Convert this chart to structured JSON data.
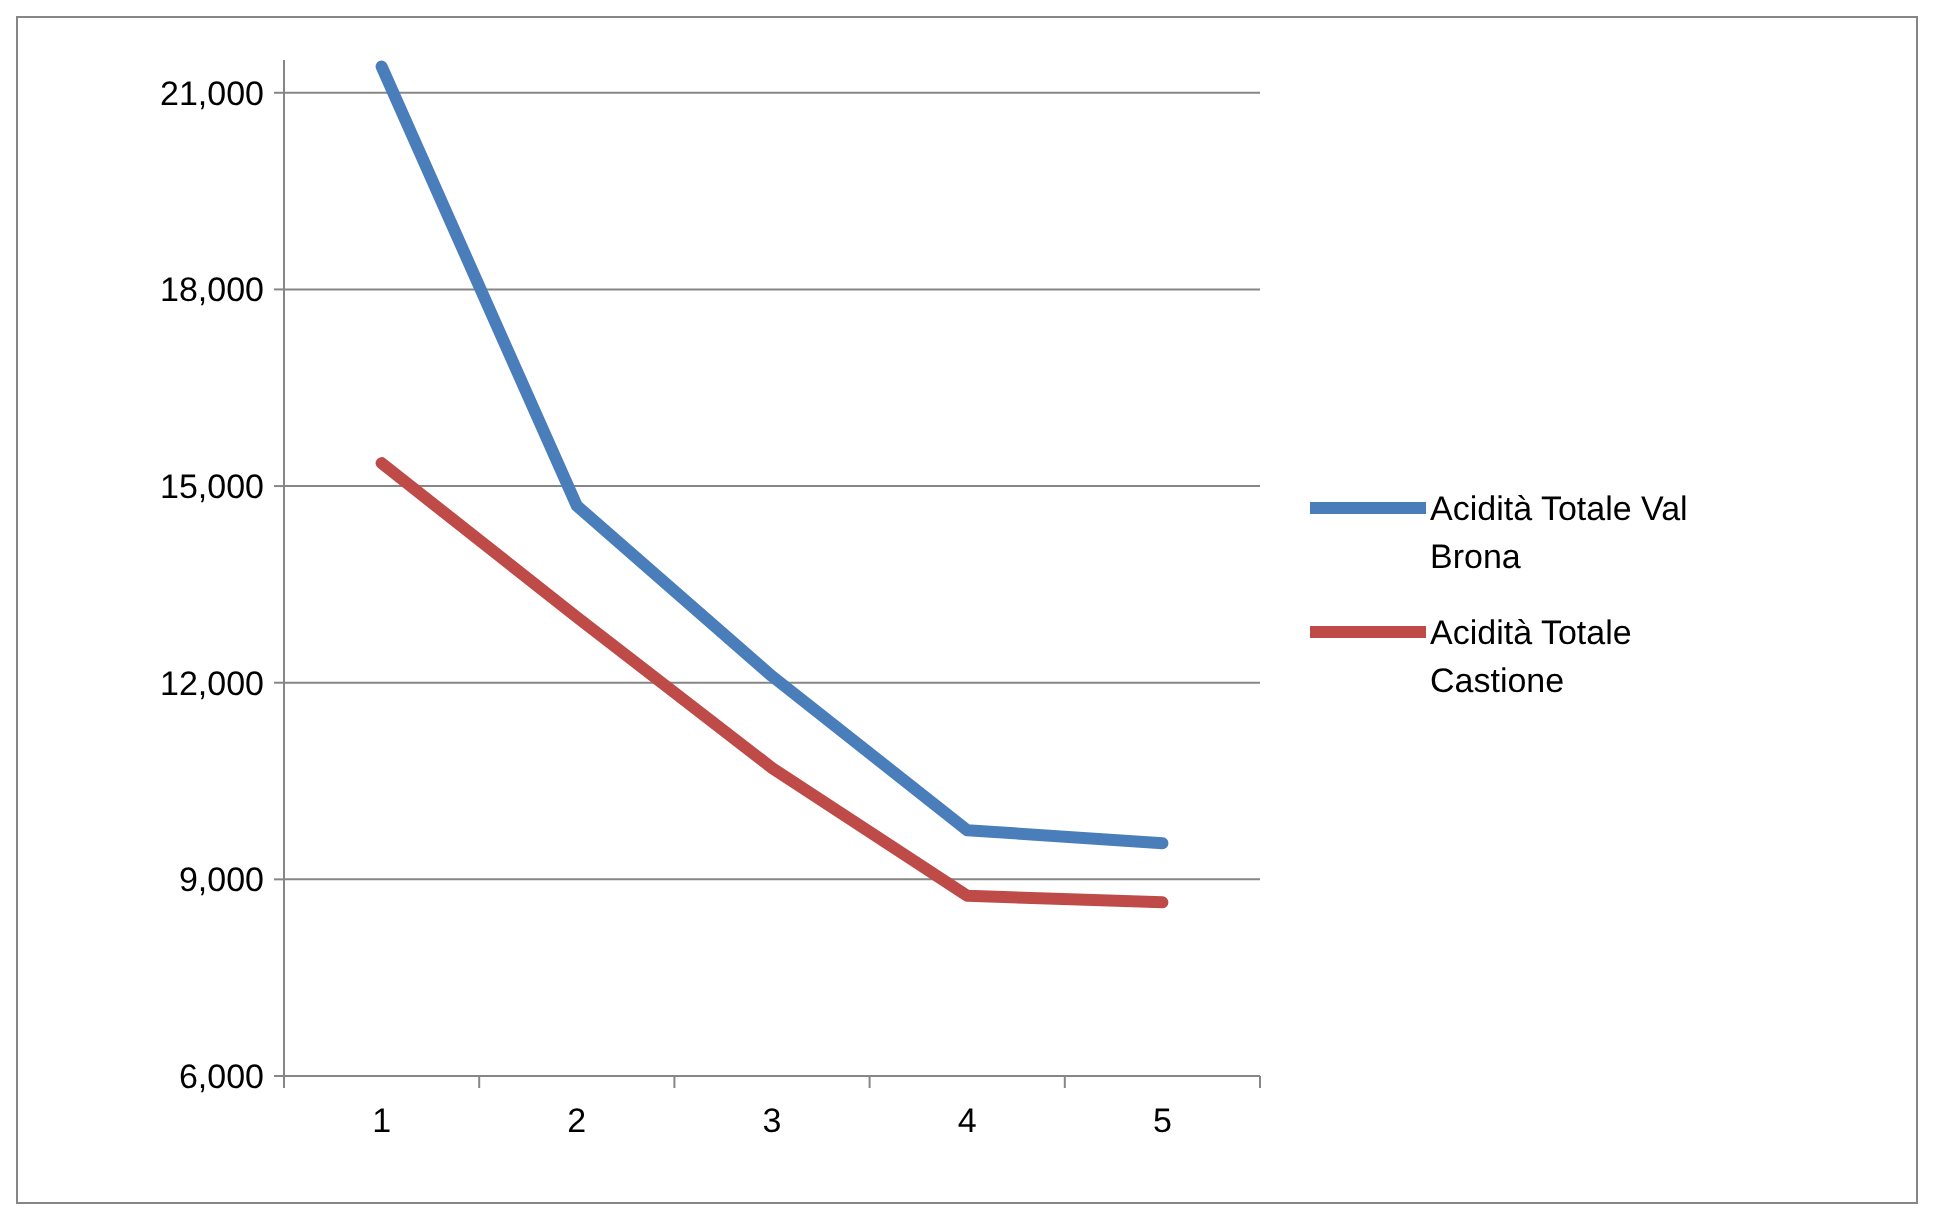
{
  "chart_data": {
    "type": "line",
    "categories": [
      "1",
      "2",
      "3",
      "4",
      "5"
    ],
    "series": [
      {
        "name": "Acidità Totale Val Brona",
        "color": "#4a7ebb",
        "values": [
          21400,
          14700,
          12100,
          9750,
          9550
        ]
      },
      {
        "name": "Acidità Totale Castione",
        "color": "#be4b48",
        "values": [
          15350,
          13000,
          10700,
          8750,
          8650
        ]
      }
    ],
    "ylim": [
      6000,
      21500
    ],
    "yticks": [
      {
        "value": 6000,
        "label": "6,000"
      },
      {
        "value": 9000,
        "label": "9,000"
      },
      {
        "value": 12000,
        "label": "12,000"
      },
      {
        "value": 15000,
        "label": "15,000"
      },
      {
        "value": 18000,
        "label": "18,000"
      },
      {
        "value": 21000,
        "label": "21,000"
      }
    ],
    "grid": "y",
    "legend": "right",
    "marker": "none",
    "line_style": "solid"
  }
}
